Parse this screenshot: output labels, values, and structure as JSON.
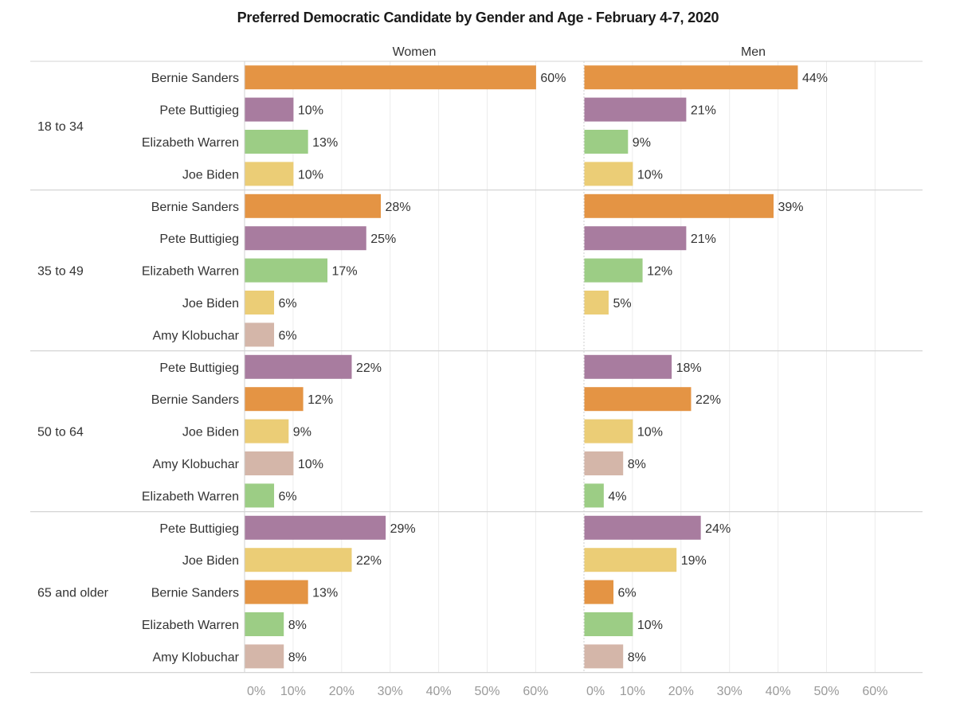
{
  "title": "Preferred Democratic Candidate by Gender and Age - February 4-7, 2020",
  "chart_data": {
    "type": "bar",
    "orientation": "horizontal",
    "title": "Preferred Democratic Candidate by Gender and Age - February 4-7, 2020",
    "panels": [
      "Women",
      "Men"
    ],
    "x_ticks": [
      "0%",
      "10%",
      "20%",
      "30%",
      "40%",
      "50%",
      "60%"
    ],
    "xlim": [
      0,
      70
    ],
    "unit": "%",
    "colors": {
      "Bernie Sanders": "#e49444",
      "Pete Buttigieg": "#a87c9f",
      "Elizabeth Warren": "#9ccd85",
      "Joe Biden": "#ebcd76",
      "Amy Klobuchar": "#d4b6a9"
    },
    "groups": [
      {
        "age": "18 to 34",
        "rows": [
          {
            "candidate": "Bernie Sanders",
            "women": 60,
            "women_label": "60%",
            "men": 44,
            "men_label": "44%"
          },
          {
            "candidate": "Pete Buttigieg",
            "women": 10,
            "women_label": "10%",
            "men": 21,
            "men_label": "21%"
          },
          {
            "candidate": "Elizabeth Warren",
            "women": 13,
            "women_label": "13%",
            "men": 9,
            "men_label": "9%"
          },
          {
            "candidate": "Joe Biden",
            "women": 10,
            "women_label": "10%",
            "men": 10,
            "men_label": "10%"
          }
        ]
      },
      {
        "age": "35 to 49",
        "rows": [
          {
            "candidate": "Bernie Sanders",
            "women": 28,
            "women_label": "28%",
            "men": 39,
            "men_label": "39%"
          },
          {
            "candidate": "Pete Buttigieg",
            "women": 25,
            "women_label": "25%",
            "men": 21,
            "men_label": "21%"
          },
          {
            "candidate": "Elizabeth Warren",
            "women": 17,
            "women_label": "17%",
            "men": 12,
            "men_label": "12%"
          },
          {
            "candidate": "Joe Biden",
            "women": 6,
            "women_label": "6%",
            "men": 5,
            "men_label": "5%"
          },
          {
            "candidate": "Amy Klobuchar",
            "women": 6,
            "women_label": "6%",
            "men": null,
            "men_label": null
          }
        ]
      },
      {
        "age": "50 to 64",
        "rows": [
          {
            "candidate": "Pete Buttigieg",
            "women": 22,
            "women_label": "22%",
            "men": 18,
            "men_label": "18%"
          },
          {
            "candidate": "Bernie Sanders",
            "women": 12,
            "women_label": "12%",
            "men": 22,
            "men_label": "22%"
          },
          {
            "candidate": "Joe Biden",
            "women": 9,
            "women_label": "9%",
            "men": 10,
            "men_label": "10%"
          },
          {
            "candidate": "Amy Klobuchar",
            "women": 10,
            "women_label": "10%",
            "men": 8,
            "men_label": "8%"
          },
          {
            "candidate": "Elizabeth Warren",
            "women": 6,
            "women_label": "6%",
            "men": 4,
            "men_label": "4%"
          }
        ]
      },
      {
        "age": "65 and older",
        "rows": [
          {
            "candidate": "Pete Buttigieg",
            "women": 29,
            "women_label": "29%",
            "men": 24,
            "men_label": "24%"
          },
          {
            "candidate": "Joe Biden",
            "women": 22,
            "women_label": "22%",
            "men": 19,
            "men_label": "19%"
          },
          {
            "candidate": "Bernie Sanders",
            "women": 13,
            "women_label": "13%",
            "men": 6,
            "men_label": "6%"
          },
          {
            "candidate": "Elizabeth Warren",
            "women": 8,
            "women_label": "8%",
            "men": 10,
            "men_label": "10%"
          },
          {
            "candidate": "Amy Klobuchar",
            "women": 8,
            "women_label": "8%",
            "men": 8,
            "men_label": "8%"
          }
        ]
      }
    ]
  }
}
